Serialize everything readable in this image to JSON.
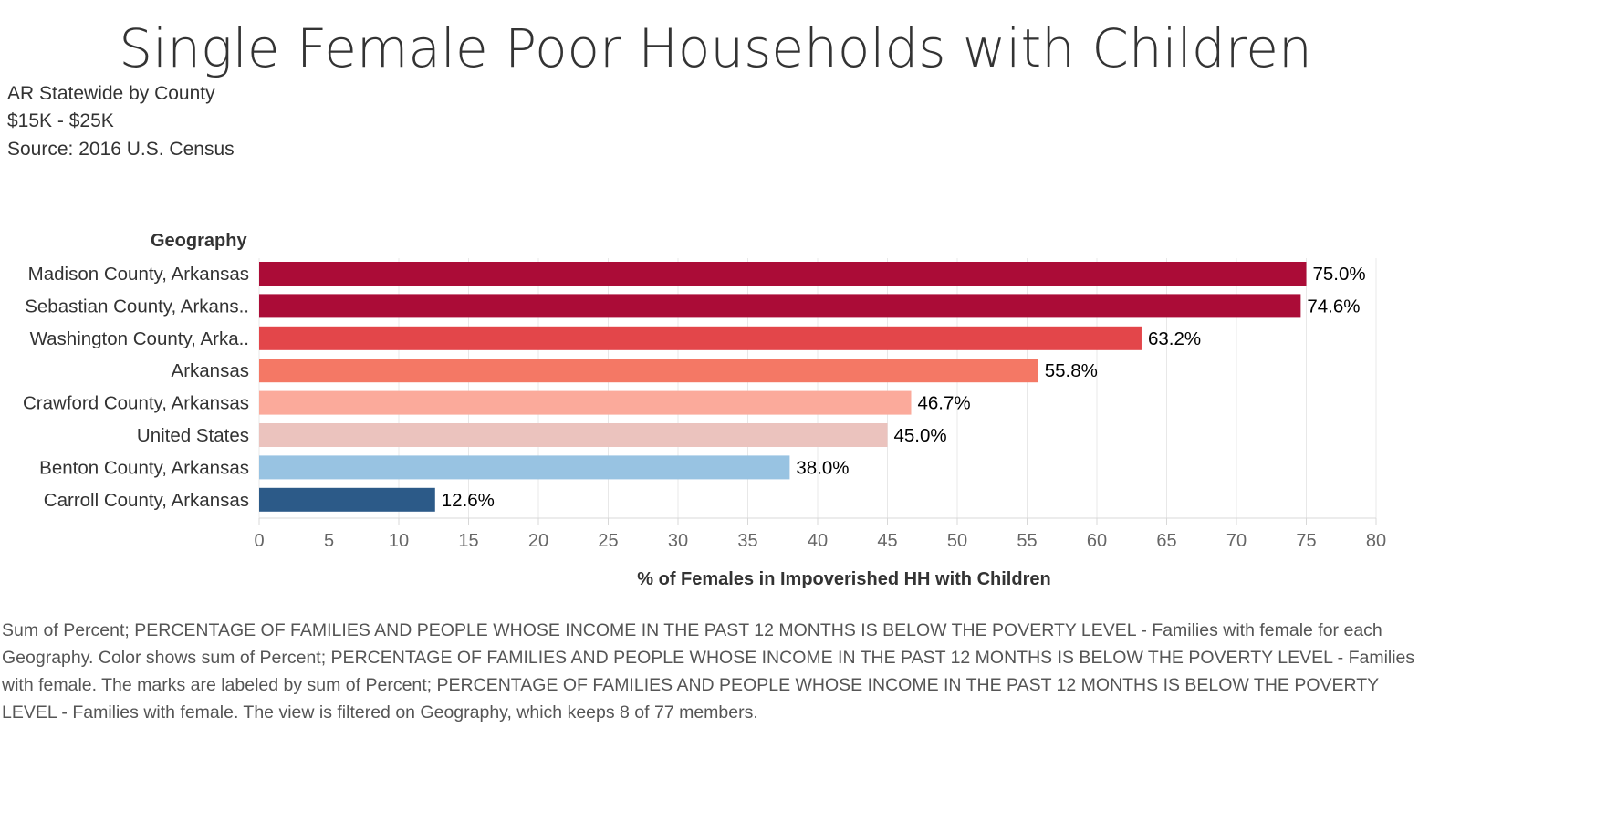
{
  "chart_data": {
    "type": "bar",
    "orientation": "horizontal",
    "title": "Single Female Poor Households with Children",
    "subtitle_lines": [
      "AR Statewide by County",
      "$15K - $25K",
      "Source: 2016 U.S. Census"
    ],
    "category_header": "Geography",
    "categories": [
      "Madison County, Arkansas",
      "Sebastian County, Arkans..",
      "Washington County, Arka..",
      "Arkansas",
      "Crawford County, Arkansas",
      "United States",
      "Benton County, Arkansas",
      "Carroll County, Arkansas"
    ],
    "values": [
      75.0,
      74.6,
      63.2,
      55.8,
      46.7,
      45.0,
      38.0,
      12.6
    ],
    "value_labels": [
      "75.0%",
      "74.6%",
      "63.2%",
      "55.8%",
      "46.7%",
      "45.0%",
      "38.0%",
      "12.6%"
    ],
    "colors": [
      "#ab0c37",
      "#ab0c37",
      "#e3464a",
      "#f47865",
      "#fbaa9b",
      "#ebc3be",
      "#98c3e2",
      "#2c5a88"
    ],
    "xlabel": "% of Females in Impoverished HH with Children",
    "ylabel": "",
    "xlim": [
      0,
      80
    ],
    "xticks": [
      0,
      5,
      10,
      15,
      20,
      25,
      30,
      35,
      40,
      45,
      50,
      55,
      60,
      65,
      70,
      75,
      80
    ],
    "grid": true,
    "legend": "none"
  },
  "footnote": "Sum of Percent; PERCENTAGE OF FAMILIES AND PEOPLE WHOSE INCOME IN THE PAST 12 MONTHS IS BELOW THE POVERTY LEVEL - Families with female for each Geography.  Color shows sum of Percent; PERCENTAGE OF FAMILIES AND PEOPLE WHOSE INCOME IN THE PAST 12 MONTHS IS BELOW THE POVERTY LEVEL - Families with female.  The marks are labeled by sum of Percent; PERCENTAGE OF FAMILIES AND PEOPLE WHOSE INCOME IN THE PAST 12 MONTHS IS BELOW THE POVERTY LEVEL - Families with female. The view is filtered on Geography, which keeps 8 of 77 members."
}
